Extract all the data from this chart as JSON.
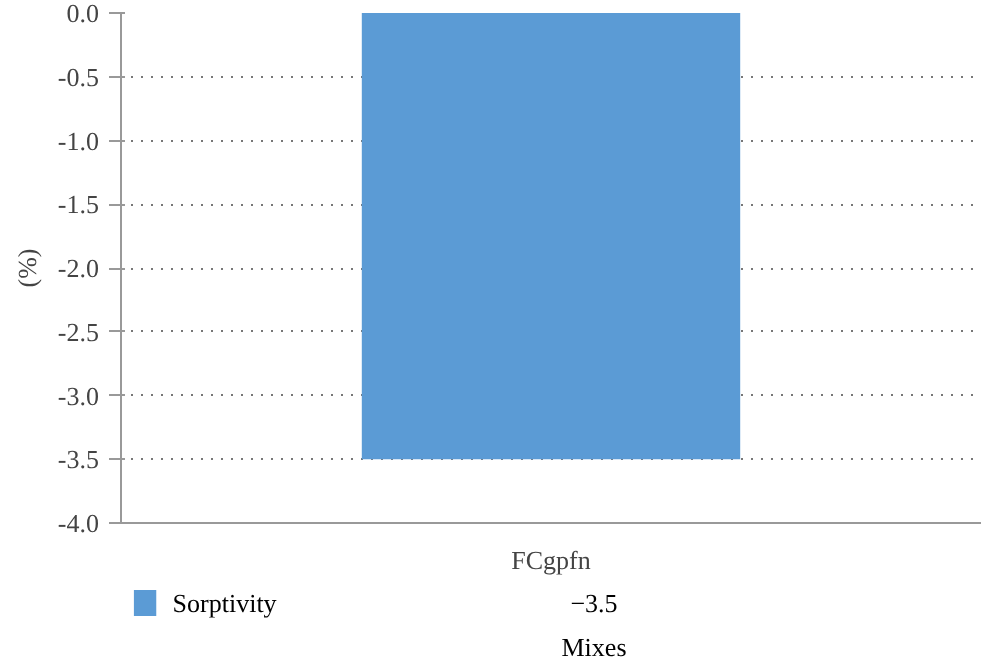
{
  "chart_data": {
    "type": "bar",
    "xlabel": "Mixes",
    "ylabel": "(%)",
    "categories": [
      "FCgpfn"
    ],
    "series": [
      {
        "name": "Sorptivity",
        "color": "#5b9bd5",
        "values": [
          -3.5
        ]
      }
    ],
    "value_labels": [
      "−3.5"
    ],
    "ylim": [
      -4.0,
      0.0
    ],
    "yticks": [
      {
        "value": 0,
        "label": "0.0"
      },
      {
        "value": -0.5,
        "label": "-0.5"
      },
      {
        "value": -1,
        "label": "-1.0"
      },
      {
        "value": -1.5,
        "label": "-1.5"
      },
      {
        "value": -2,
        "label": "-2.0"
      },
      {
        "value": -2.5,
        "label": "-2.5"
      },
      {
        "value": -3,
        "label": "-3.0"
      },
      {
        "value": -3.5,
        "label": "-3.5"
      },
      {
        "value": -4,
        "label": "-4.0"
      }
    ],
    "grid": "y",
    "legend": "bottom"
  }
}
